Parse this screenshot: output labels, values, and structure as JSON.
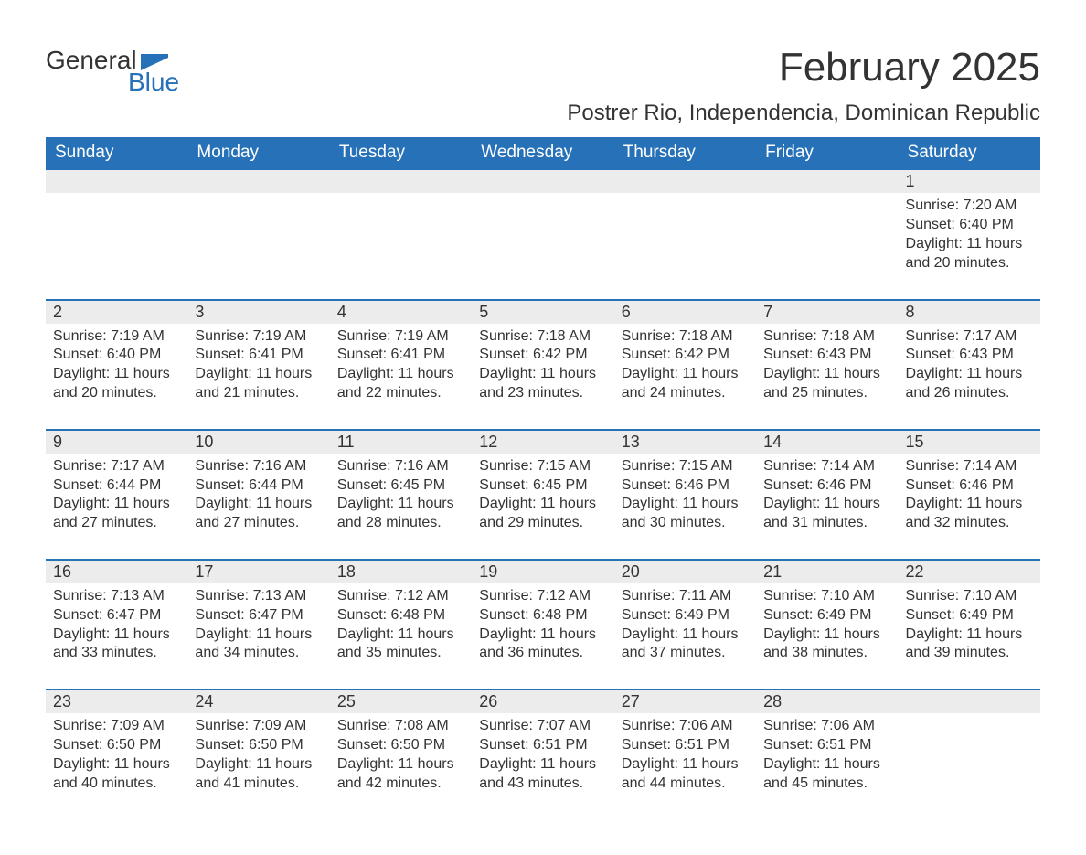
{
  "logo": {
    "word1": "General",
    "word2": "Blue",
    "flag_color": "#2671b8"
  },
  "title": "February 2025",
  "location": "Postrer Rio, Independencia, Dominican Republic",
  "colors": {
    "header_bg": "#2671b8",
    "header_text": "#ffffff",
    "daynum_bg": "#ececec",
    "daynum_border": "#2671b8",
    "body_text": "#333333",
    "page_bg": "#ffffff"
  },
  "fonts": {
    "title_size_pt": 33,
    "location_size_pt": 18,
    "header_size_pt": 14,
    "daynum_size_pt": 14,
    "detail_size_pt": 12
  },
  "weekdays": [
    "Sunday",
    "Monday",
    "Tuesday",
    "Wednesday",
    "Thursday",
    "Friday",
    "Saturday"
  ],
  "weeks": [
    [
      null,
      null,
      null,
      null,
      null,
      null,
      {
        "n": "1",
        "sunrise": "Sunrise: 7:20 AM",
        "sunset": "Sunset: 6:40 PM",
        "daylight1": "Daylight: 11 hours",
        "daylight2": "and 20 minutes."
      }
    ],
    [
      {
        "n": "2",
        "sunrise": "Sunrise: 7:19 AM",
        "sunset": "Sunset: 6:40 PM",
        "daylight1": "Daylight: 11 hours",
        "daylight2": "and 20 minutes."
      },
      {
        "n": "3",
        "sunrise": "Sunrise: 7:19 AM",
        "sunset": "Sunset: 6:41 PM",
        "daylight1": "Daylight: 11 hours",
        "daylight2": "and 21 minutes."
      },
      {
        "n": "4",
        "sunrise": "Sunrise: 7:19 AM",
        "sunset": "Sunset: 6:41 PM",
        "daylight1": "Daylight: 11 hours",
        "daylight2": "and 22 minutes."
      },
      {
        "n": "5",
        "sunrise": "Sunrise: 7:18 AM",
        "sunset": "Sunset: 6:42 PM",
        "daylight1": "Daylight: 11 hours",
        "daylight2": "and 23 minutes."
      },
      {
        "n": "6",
        "sunrise": "Sunrise: 7:18 AM",
        "sunset": "Sunset: 6:42 PM",
        "daylight1": "Daylight: 11 hours",
        "daylight2": "and 24 minutes."
      },
      {
        "n": "7",
        "sunrise": "Sunrise: 7:18 AM",
        "sunset": "Sunset: 6:43 PM",
        "daylight1": "Daylight: 11 hours",
        "daylight2": "and 25 minutes."
      },
      {
        "n": "8",
        "sunrise": "Sunrise: 7:17 AM",
        "sunset": "Sunset: 6:43 PM",
        "daylight1": "Daylight: 11 hours",
        "daylight2": "and 26 minutes."
      }
    ],
    [
      {
        "n": "9",
        "sunrise": "Sunrise: 7:17 AM",
        "sunset": "Sunset: 6:44 PM",
        "daylight1": "Daylight: 11 hours",
        "daylight2": "and 27 minutes."
      },
      {
        "n": "10",
        "sunrise": "Sunrise: 7:16 AM",
        "sunset": "Sunset: 6:44 PM",
        "daylight1": "Daylight: 11 hours",
        "daylight2": "and 27 minutes."
      },
      {
        "n": "11",
        "sunrise": "Sunrise: 7:16 AM",
        "sunset": "Sunset: 6:45 PM",
        "daylight1": "Daylight: 11 hours",
        "daylight2": "and 28 minutes."
      },
      {
        "n": "12",
        "sunrise": "Sunrise: 7:15 AM",
        "sunset": "Sunset: 6:45 PM",
        "daylight1": "Daylight: 11 hours",
        "daylight2": "and 29 minutes."
      },
      {
        "n": "13",
        "sunrise": "Sunrise: 7:15 AM",
        "sunset": "Sunset: 6:46 PM",
        "daylight1": "Daylight: 11 hours",
        "daylight2": "and 30 minutes."
      },
      {
        "n": "14",
        "sunrise": "Sunrise: 7:14 AM",
        "sunset": "Sunset: 6:46 PM",
        "daylight1": "Daylight: 11 hours",
        "daylight2": "and 31 minutes."
      },
      {
        "n": "15",
        "sunrise": "Sunrise: 7:14 AM",
        "sunset": "Sunset: 6:46 PM",
        "daylight1": "Daylight: 11 hours",
        "daylight2": "and 32 minutes."
      }
    ],
    [
      {
        "n": "16",
        "sunrise": "Sunrise: 7:13 AM",
        "sunset": "Sunset: 6:47 PM",
        "daylight1": "Daylight: 11 hours",
        "daylight2": "and 33 minutes."
      },
      {
        "n": "17",
        "sunrise": "Sunrise: 7:13 AM",
        "sunset": "Sunset: 6:47 PM",
        "daylight1": "Daylight: 11 hours",
        "daylight2": "and 34 minutes."
      },
      {
        "n": "18",
        "sunrise": "Sunrise: 7:12 AM",
        "sunset": "Sunset: 6:48 PM",
        "daylight1": "Daylight: 11 hours",
        "daylight2": "and 35 minutes."
      },
      {
        "n": "19",
        "sunrise": "Sunrise: 7:12 AM",
        "sunset": "Sunset: 6:48 PM",
        "daylight1": "Daylight: 11 hours",
        "daylight2": "and 36 minutes."
      },
      {
        "n": "20",
        "sunrise": "Sunrise: 7:11 AM",
        "sunset": "Sunset: 6:49 PM",
        "daylight1": "Daylight: 11 hours",
        "daylight2": "and 37 minutes."
      },
      {
        "n": "21",
        "sunrise": "Sunrise: 7:10 AM",
        "sunset": "Sunset: 6:49 PM",
        "daylight1": "Daylight: 11 hours",
        "daylight2": "and 38 minutes."
      },
      {
        "n": "22",
        "sunrise": "Sunrise: 7:10 AM",
        "sunset": "Sunset: 6:49 PM",
        "daylight1": "Daylight: 11 hours",
        "daylight2": "and 39 minutes."
      }
    ],
    [
      {
        "n": "23",
        "sunrise": "Sunrise: 7:09 AM",
        "sunset": "Sunset: 6:50 PM",
        "daylight1": "Daylight: 11 hours",
        "daylight2": "and 40 minutes."
      },
      {
        "n": "24",
        "sunrise": "Sunrise: 7:09 AM",
        "sunset": "Sunset: 6:50 PM",
        "daylight1": "Daylight: 11 hours",
        "daylight2": "and 41 minutes."
      },
      {
        "n": "25",
        "sunrise": "Sunrise: 7:08 AM",
        "sunset": "Sunset: 6:50 PM",
        "daylight1": "Daylight: 11 hours",
        "daylight2": "and 42 minutes."
      },
      {
        "n": "26",
        "sunrise": "Sunrise: 7:07 AM",
        "sunset": "Sunset: 6:51 PM",
        "daylight1": "Daylight: 11 hours",
        "daylight2": "and 43 minutes."
      },
      {
        "n": "27",
        "sunrise": "Sunrise: 7:06 AM",
        "sunset": "Sunset: 6:51 PM",
        "daylight1": "Daylight: 11 hours",
        "daylight2": "and 44 minutes."
      },
      {
        "n": "28",
        "sunrise": "Sunrise: 7:06 AM",
        "sunset": "Sunset: 6:51 PM",
        "daylight1": "Daylight: 11 hours",
        "daylight2": "and 45 minutes."
      },
      null
    ]
  ]
}
